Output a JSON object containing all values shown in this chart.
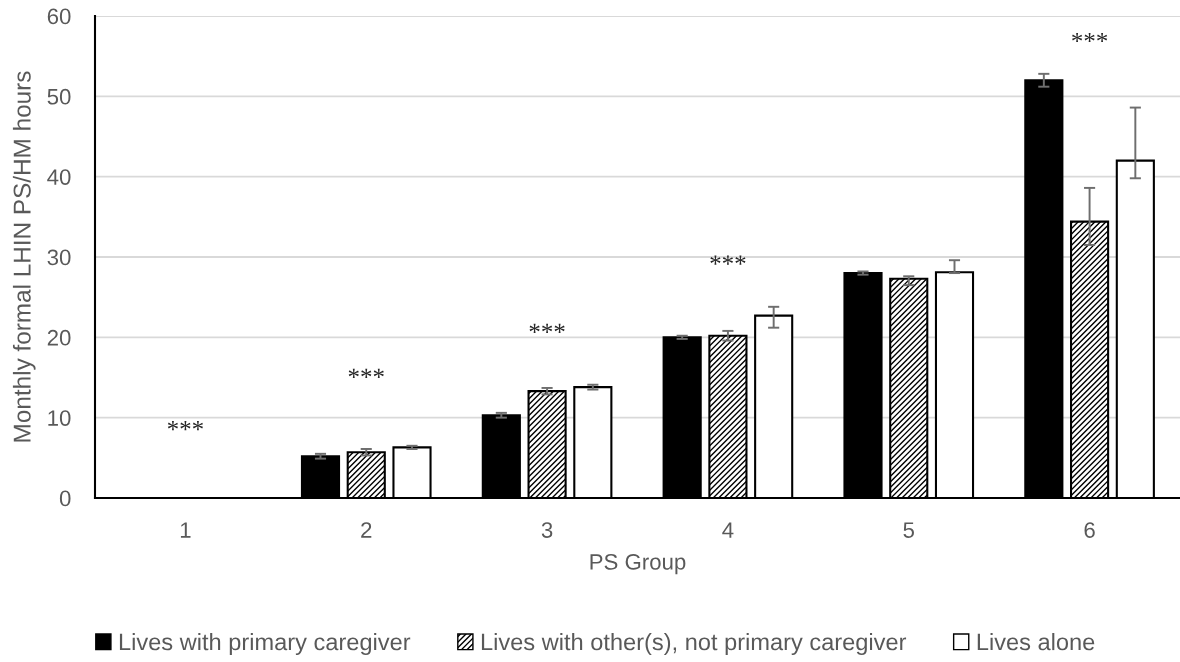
{
  "chart_data": {
    "type": "bar",
    "xlabel": "PS Group",
    "ylabel": "Monthly formal LHIN PS/HM hours",
    "categories": [
      "1",
      "2",
      "3",
      "4",
      "5",
      "6"
    ],
    "series": [
      {
        "name": "Lives with primary caregiver",
        "color": "#000000",
        "values": [
          0,
          5.2,
          10.3,
          20.0,
          28.0,
          52.0
        ],
        "errors": [
          null,
          0.3,
          0.3,
          0.2,
          0.2,
          0.8
        ]
      },
      {
        "name": "Lives with other(s), not primary caregiver",
        "color": "#000000",
        "values": [
          0,
          5.7,
          13.3,
          20.2,
          27.3,
          34.4
        ],
        "errors": [
          null,
          0.4,
          0.4,
          0.6,
          [
            26.5,
            27.6
          ],
          [
            31.5,
            38.6
          ]
        ]
      },
      {
        "name": "Lives alone",
        "color": "#ffffff",
        "values": [
          0,
          6.3,
          13.8,
          22.7,
          28.1,
          42.0
        ],
        "errors": [
          null,
          0.2,
          0.3,
          [
            21.2,
            23.8
          ],
          [
            28.0,
            29.6
          ],
          [
            39.8,
            48.6
          ]
        ]
      }
    ],
    "ylim": [
      0,
      60
    ],
    "yticks": [
      0,
      10,
      20,
      30,
      40,
      50,
      60
    ],
    "grid": "y",
    "legend": "bottom",
    "annotations": [
      "***",
      "***",
      "***",
      "***",
      "***"
    ]
  }
}
